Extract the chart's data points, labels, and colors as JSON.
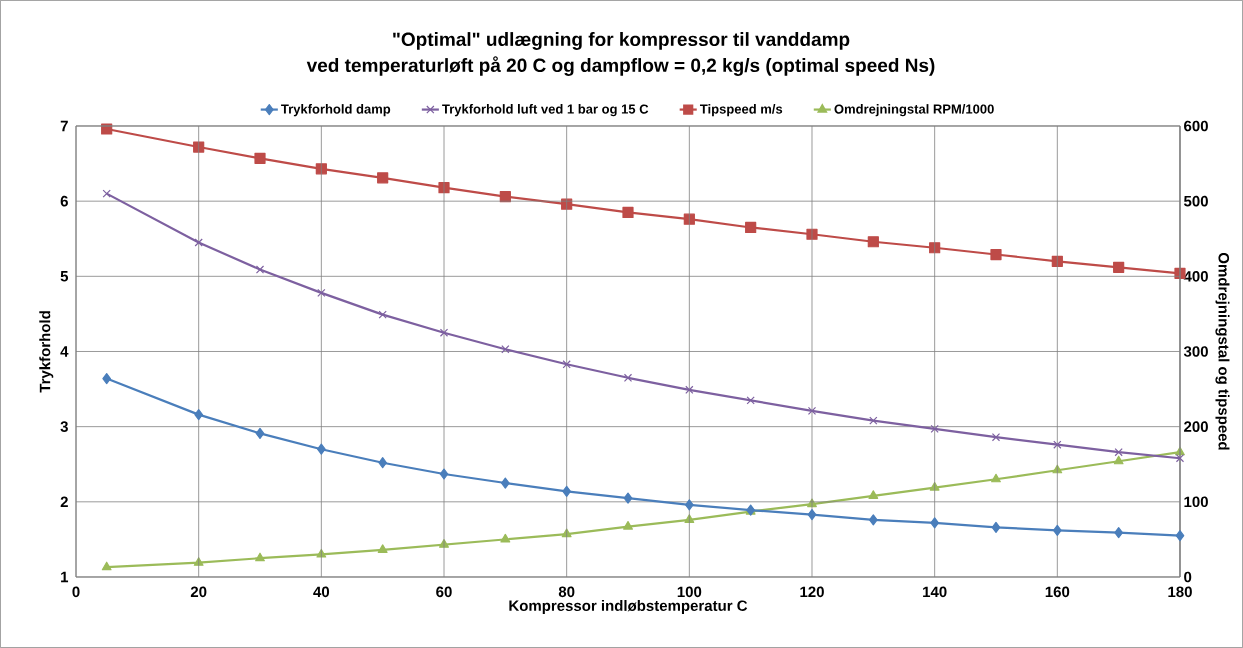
{
  "chart_data": {
    "type": "line",
    "title": "\"Optimal\" udlægning for kompressor til vanddamp",
    "subtitle": "ved temperaturløft på 20 C og dampflow = 0,2 kg/s (optimal speed Ns)",
    "xlabel": "Kompressor indløbstemperatur C",
    "ylabel": "Trykforhold",
    "y2label": "Omdrejningstal og tipspeed",
    "x": [
      5,
      20,
      30,
      40,
      50,
      60,
      70,
      80,
      90,
      100,
      110,
      120,
      130,
      140,
      150,
      160,
      170,
      180
    ],
    "xlim": [
      0,
      180
    ],
    "xticks": [
      0,
      20,
      40,
      60,
      80,
      100,
      120,
      140,
      160,
      180
    ],
    "ylim": [
      1,
      7
    ],
    "yticks": [
      1,
      2,
      3,
      4,
      5,
      6,
      7
    ],
    "y2lim": [
      0,
      600
    ],
    "y2ticks": [
      0,
      100,
      200,
      300,
      400,
      500,
      600
    ],
    "grid": true,
    "legend": "top",
    "series": [
      {
        "name": "Trykforhold damp",
        "color": "#4a7ebb",
        "marker": "diamond",
        "values": [
          3.64,
          3.16,
          2.91,
          2.7,
          2.52,
          2.37,
          2.25,
          2.14,
          2.05,
          1.96,
          1.89,
          1.83,
          1.76,
          1.72,
          1.66,
          1.62,
          1.59,
          1.55
        ]
      },
      {
        "name": "Trykforhold luft ved 1 bar og 15 C",
        "color": "#7d60a0",
        "marker": "cross",
        "values": [
          6.1,
          5.45,
          5.09,
          4.78,
          4.49,
          4.25,
          4.03,
          3.83,
          3.65,
          3.49,
          3.35,
          3.21,
          3.08,
          2.97,
          2.86,
          2.76,
          2.66,
          2.58
        ]
      },
      {
        "name": "Tipspeed m/s",
        "color": "#be4b48",
        "marker": "square",
        "axis": "y2",
        "values": [
          596,
          572,
          557,
          543,
          531,
          518,
          506,
          496,
          485,
          476,
          465,
          456,
          446,
          438,
          429,
          420,
          412,
          404
        ]
      },
      {
        "name": "Omdrejningstal RPM/1000",
        "color": "#9bbb59",
        "marker": "triangle",
        "axis": "y2",
        "values": [
          13,
          19,
          25,
          30,
          36,
          43,
          50,
          57,
          67,
          76,
          87,
          97,
          108,
          119,
          130,
          142,
          154,
          166
        ]
      }
    ]
  }
}
